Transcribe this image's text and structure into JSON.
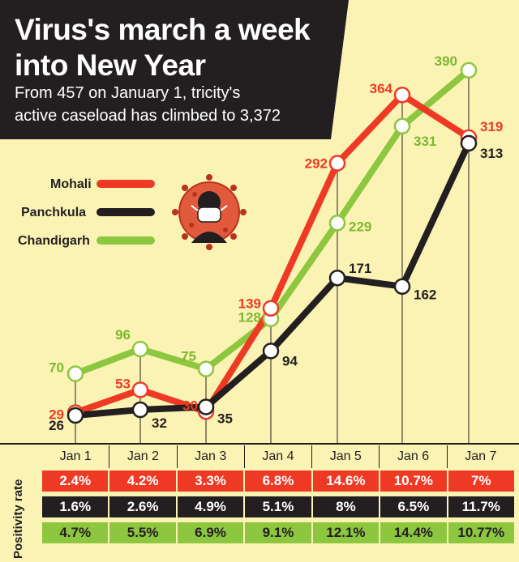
{
  "title": [
    "Virus's march a week",
    "into New Year"
  ],
  "subtitle": [
    "From 457 on January 1, tricity's",
    "active caseload has climbed to 3,372"
  ],
  "positivity_label": "Positivity rate",
  "colors": {
    "Mohali": "#ee3a24",
    "Panchkula": "#231f20",
    "Chandigarh": "#8dc63f"
  },
  "icon": "coronavirus-mask-icon",
  "chart_data": {
    "type": "line",
    "title": "Virus's march a week into New Year",
    "subtitle": "From 457 on January 1, tricity's active caseload has climbed to 3,372",
    "categories": [
      "Jan 1",
      "Jan 2",
      "Jan 3",
      "Jan 4",
      "Jan 5",
      "Jan 6",
      "Jan 7"
    ],
    "series": [
      {
        "name": "Mohali",
        "values": [
          29,
          53,
          30,
          139,
          292,
          364,
          319
        ]
      },
      {
        "name": "Panchkula",
        "values": [
          26,
          32,
          35,
          94,
          171,
          162,
          313
        ]
      },
      {
        "name": "Chandigarh",
        "values": [
          70,
          96,
          75,
          128,
          229,
          331,
          390
        ]
      }
    ],
    "legend": "left",
    "positivity_rate": {
      "label": "Positivity rate",
      "rows": [
        {
          "name": "Mohali",
          "values": [
            "2.4%",
            "4.2%",
            "3.3%",
            "6.8%",
            "14.6%",
            "10.7%",
            "7%"
          ]
        },
        {
          "name": "Panchkula",
          "values": [
            "1.6%",
            "2.6%",
            "4.9%",
            "5.1%",
            "8%",
            "6.5%",
            "11.7%"
          ]
        },
        {
          "name": "Chandigarh",
          "values": [
            "4.7%",
            "5.5%",
            "6.9%",
            "9.1%",
            "12.1%",
            "14.4%",
            "10.77%"
          ]
        }
      ]
    }
  }
}
